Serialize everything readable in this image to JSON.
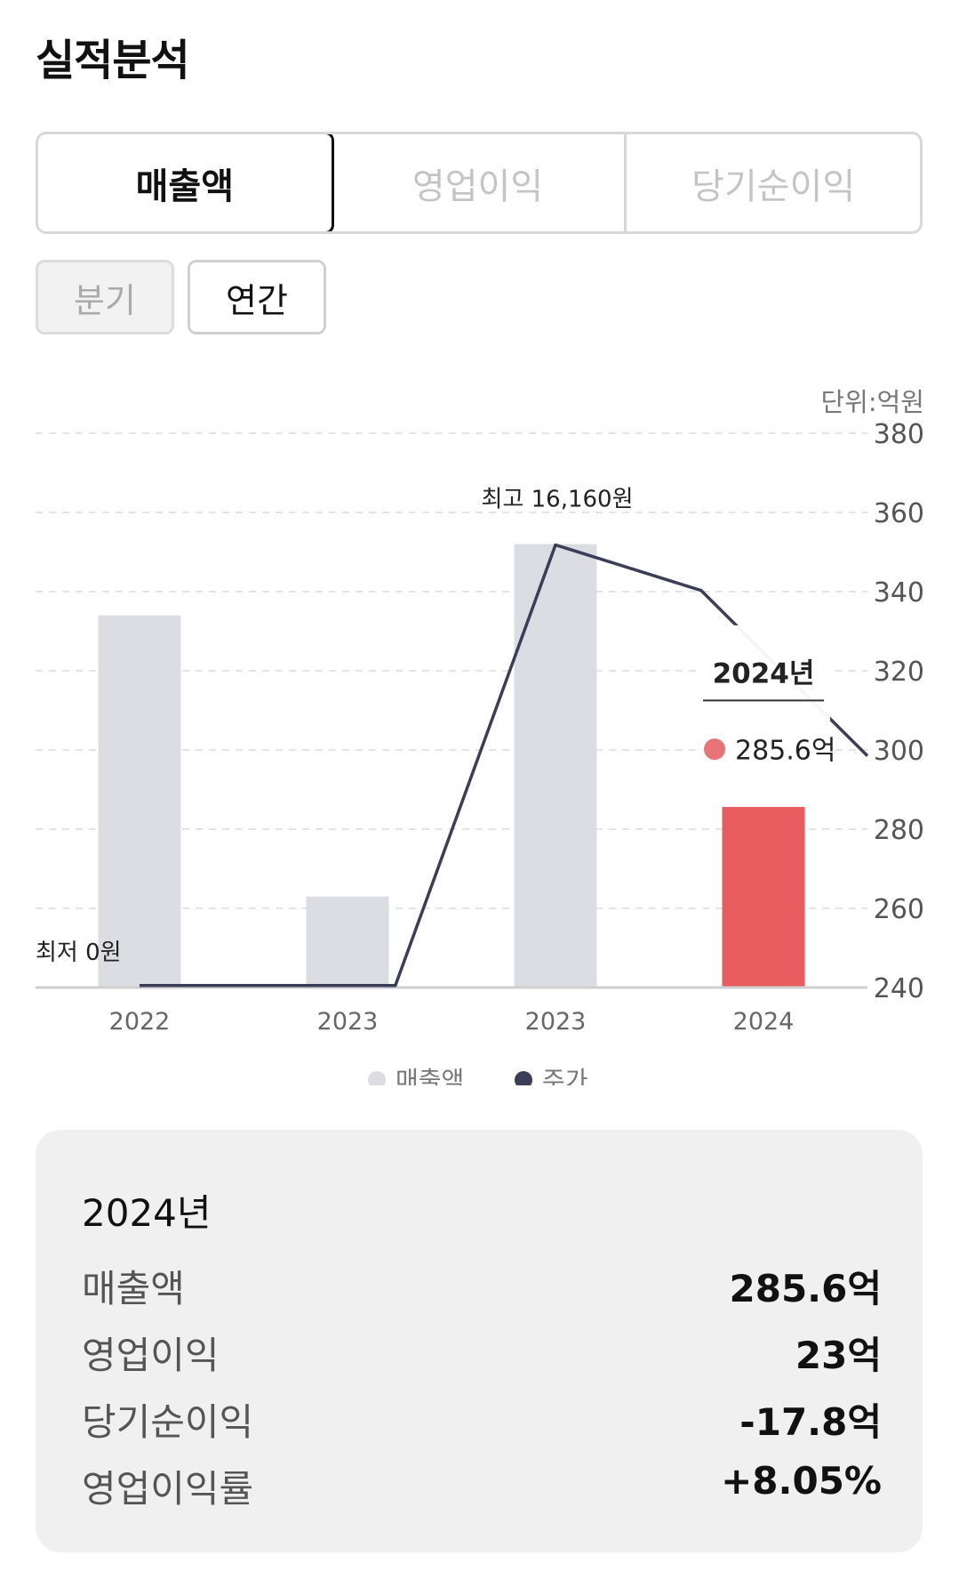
{
  "title": "실적분석",
  "tabs": [
    {
      "label": "매출액",
      "active": true
    },
    {
      "label": "영업이익",
      "active": false
    },
    {
      "label": "당기순이익",
      "active": false
    }
  ],
  "period": {
    "quarter": "분기",
    "annual": "연간",
    "selected": "연간"
  },
  "colors": {
    "bar": "#dcdde2",
    "highlight_bar": "#e85b5f",
    "line": "#3b3e56",
    "tooltip_dot": "#e87478"
  },
  "chart_data": {
    "type": "bar",
    "unit_label": "단위:억원",
    "categories": [
      "2022",
      "2023",
      "2023",
      "2024"
    ],
    "series": [
      {
        "name": "매출액",
        "values": [
          334,
          263,
          352,
          285.6
        ]
      },
      {
        "name": "주가",
        "line_points": [
          [
            0,
            240.5
          ],
          [
            1.23,
            240.5
          ],
          [
            2.0,
            351.8
          ],
          [
            2.7,
            340.3
          ],
          [
            3.5,
            298.5
          ]
        ]
      }
    ],
    "ylim": [
      240,
      380
    ],
    "yticks": [
      "380",
      "360",
      "340",
      "320",
      "300",
      "280",
      "260",
      "240"
    ],
    "annotations": {
      "max": "최고 16,160원",
      "min": "최저 0원"
    },
    "tooltip": {
      "year": "2024년",
      "value": "285.6억"
    },
    "highlight_index": 3,
    "grid": true,
    "legend_position": "bottom"
  },
  "summary": {
    "year": "2024년",
    "rows": [
      {
        "label": "매출액",
        "value": "285.6억"
      },
      {
        "label": "영업이익",
        "value": "23억"
      },
      {
        "label": "당기순이익",
        "value": "-17.8억"
      },
      {
        "label": "영업이익률",
        "value": "+8.05%"
      }
    ]
  }
}
